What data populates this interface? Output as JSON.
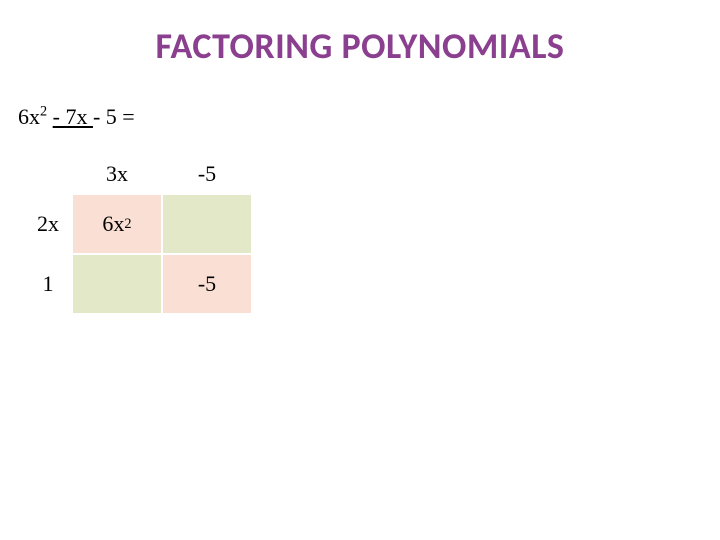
{
  "title": {
    "text": "FACTORING POLYNOMIALS",
    "color": "#8a3f8f",
    "fontsize": 36
  },
  "equation": {
    "term1": "6x",
    "term1_sup": "2",
    "space1": " ",
    "term2": "- 7x ",
    "term3": "- 5 =",
    "fontsize": 22
  },
  "grid": {
    "col_headers": [
      "3x",
      "-5"
    ],
    "row_headers": [
      "2x",
      "1"
    ],
    "cells": {
      "r0c0_text": "6x",
      "r0c0_sup": "2",
      "r0c1_text": "",
      "r1c0_text": "",
      "r1c1_text": "-5"
    },
    "colors": {
      "peach": "#fae0d4",
      "olive": "#e2e8c8"
    },
    "cell_fontsize": 22,
    "header_fontsize": 22
  },
  "background_color": "#ffffff"
}
